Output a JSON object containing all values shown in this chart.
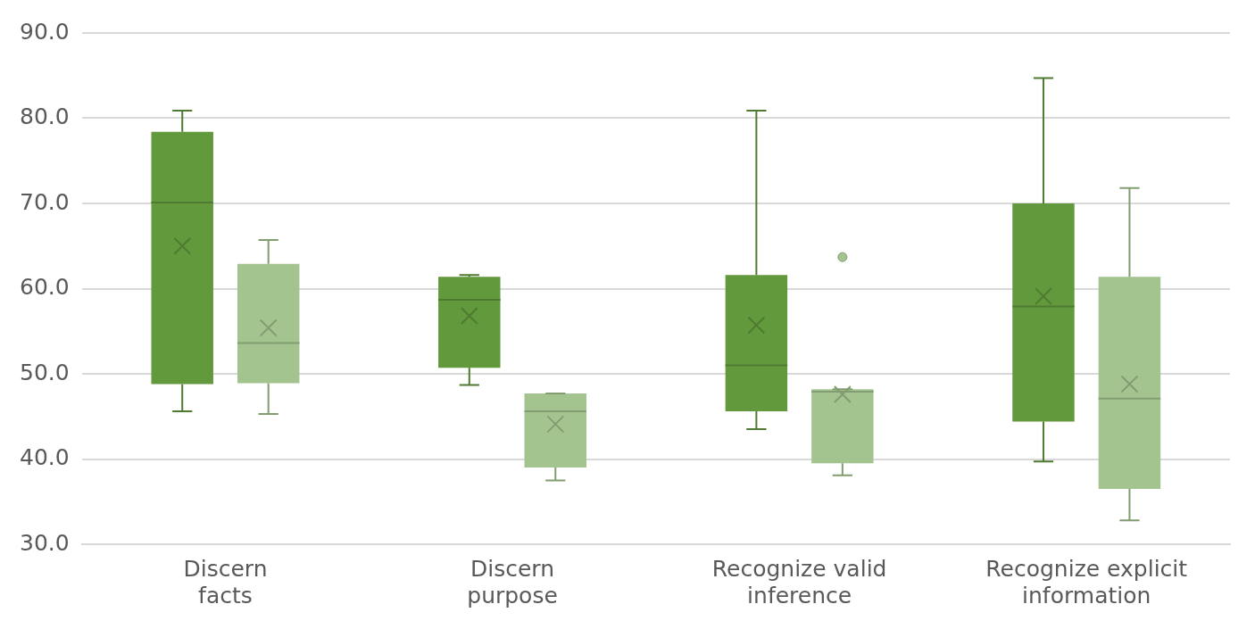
{
  "chart_data": {
    "type": "box",
    "categories": [
      "Discern facts",
      "Discern purpose",
      "Recognize valid inference",
      "Recognize explicit information"
    ],
    "series": [
      {
        "color": "#63993d",
        "boxes": [
          {
            "low": 45.6,
            "q1": 48.8,
            "median": 70.1,
            "q3": 78.4,
            "high": 80.9,
            "mean": 65.0
          },
          {
            "low": 48.7,
            "q1": 50.7,
            "median": 58.7,
            "q3": 61.4,
            "high": 61.6,
            "mean": 56.8
          },
          {
            "low": 43.5,
            "q1": 45.6,
            "median": 51.0,
            "q3": 61.6,
            "high": 80.9,
            "mean": 55.7
          },
          {
            "low": 39.7,
            "q1": 44.4,
            "median": 57.9,
            "q3": 70.0,
            "high": 84.7,
            "mean": 59.1
          }
        ]
      },
      {
        "color": "#a3c48f",
        "boxes": [
          {
            "low": 45.3,
            "q1": 48.9,
            "median": 53.6,
            "q3": 62.9,
            "high": 65.7,
            "mean": 55.4
          },
          {
            "low": 37.5,
            "q1": 39.0,
            "median": 45.6,
            "q3": 47.7,
            "high": 47.7,
            "mean": 44.1
          },
          {
            "low": 38.1,
            "q1": 39.5,
            "median": 47.9,
            "q3": 48.2,
            "high": 48.2,
            "mean": 47.6,
            "outliers": [
              63.7
            ]
          },
          {
            "low": 32.8,
            "q1": 36.5,
            "median": 47.1,
            "q3": 61.4,
            "high": 71.8,
            "mean": 48.8
          }
        ]
      }
    ],
    "ylim": [
      30,
      90
    ],
    "yticks": [
      {
        "value": 30,
        "label": "30.0"
      },
      {
        "value": 40,
        "label": "40.0"
      },
      {
        "value": 50,
        "label": "50.0"
      },
      {
        "value": 60,
        "label": "60.0"
      },
      {
        "value": 70,
        "label": "70.0"
      },
      {
        "value": 80,
        "label": "80.0"
      },
      {
        "value": 90,
        "label": "90.0"
      }
    ],
    "grid": "y",
    "legend": false
  }
}
